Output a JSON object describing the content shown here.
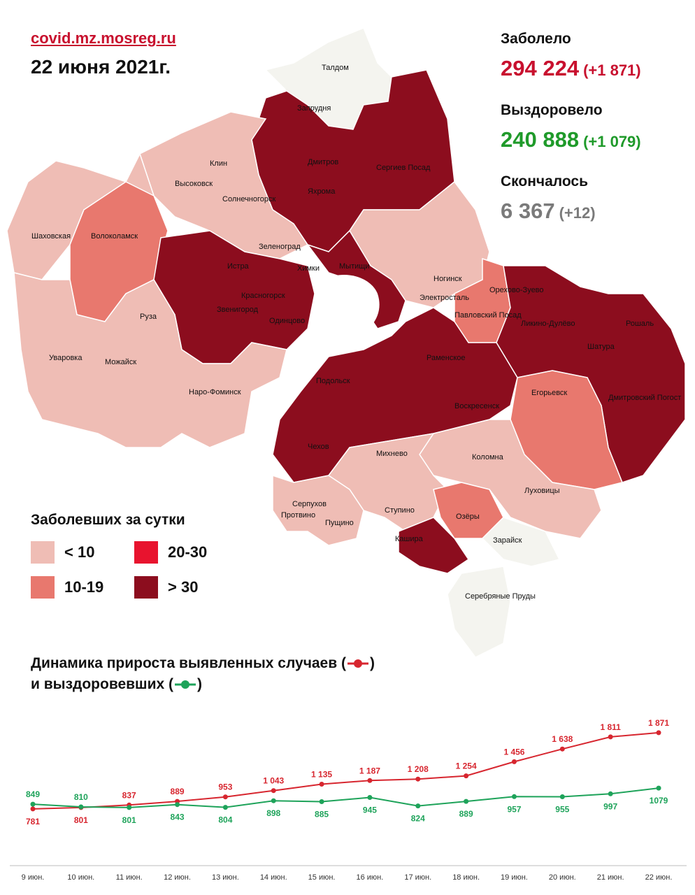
{
  "header": {
    "site": "covid.mz.mosreg.ru",
    "date": "22 июня 2021г."
  },
  "stats": {
    "sick_label": "Заболело",
    "sick_value": "294 224",
    "sick_delta": "(+1 871)",
    "recovered_label": "Выздоровело",
    "recovered_value": "240 888",
    "recovered_delta": "(+1 079)",
    "died_label": "Скончалось",
    "died_value": "6 367",
    "died_delta": "(+12)"
  },
  "colors": {
    "red": "#c8102e",
    "green": "#1f9a2a",
    "lt10": "#efbdb5",
    "r10_19": "#e8786e",
    "r20_30": "#e8132e",
    "gt30": "#8c0d1e",
    "none": "#f4f4ef"
  },
  "map": {
    "labels": [
      "Талдом",
      "Запрудня",
      "Дмитров",
      "Яхрома",
      "Сергиев Посад",
      "Клин",
      "Высоковск",
      "Солнечногорск",
      "Волоколамск",
      "Шаховская",
      "Зеленоград",
      "Истра",
      "Мытищи",
      "Химки",
      "Красногорск",
      "Звенигород",
      "Одинцово",
      "Руза",
      "Ногинск",
      "Электросталь",
      "Павловский Посад",
      "Орехово-Зуево",
      "Ликино-Дулёво",
      "Рошаль",
      "Шатура",
      "Уваровка",
      "Можайск",
      "Наро-Фоминск",
      "Раменское",
      "Подольск",
      "Воскресенск",
      "Егорьевск",
      "Дмитровский Погост",
      "Чехов",
      "Михнево",
      "Коломна",
      "Луховицы",
      "Серпухов",
      "Протвино",
      "Пущино",
      "Ступино",
      "Озёры",
      "Кашира",
      "Зарайск",
      "Серебряные Пруды"
    ]
  },
  "legend": {
    "title": "Заболевших за сутки",
    "items": [
      "< 10",
      "20-30",
      "10-19",
      "> 30"
    ]
  },
  "dynamics": {
    "title_line1": "Динамика прироста выявленных случаев (",
    "title_line1_end": ")",
    "title_line2": "и выздоровевших (",
    "title_line2_end": ")"
  },
  "chart_data": {
    "type": "line",
    "categories": [
      "9 июн.",
      "10 июн.",
      "11 июн.",
      "12 июн.",
      "13 июн.",
      "14 июн.",
      "15 июн.",
      "16 июн.",
      "17 июн.",
      "18 июн.",
      "19 июн.",
      "20 июн.",
      "21 июн.",
      "22 июн."
    ],
    "series": [
      {
        "color": "#d7262f",
        "values": [
          781,
          801,
          837,
          889,
          953,
          1043,
          1135,
          1187,
          1208,
          1254,
          1456,
          1638,
          1811,
          1871
        ],
        "labels": [
          "781",
          "801",
          "837",
          "889",
          "953",
          "1 043",
          "1 135",
          "1 187",
          "1 208",
          "1 254",
          "1 456",
          "1 638",
          "1 811",
          "1 871"
        ]
      },
      {
        "color": "#1ea35a",
        "values": [
          849,
          810,
          801,
          843,
          804,
          898,
          885,
          945,
          824,
          889,
          957,
          955,
          997,
          1079
        ],
        "labels": [
          "849",
          "810",
          "801",
          "843",
          "804",
          "898",
          "885",
          "945",
          "824",
          "889",
          "957",
          "955",
          "997",
          "1079"
        ]
      }
    ],
    "ylim": [
      600,
      2000
    ]
  }
}
